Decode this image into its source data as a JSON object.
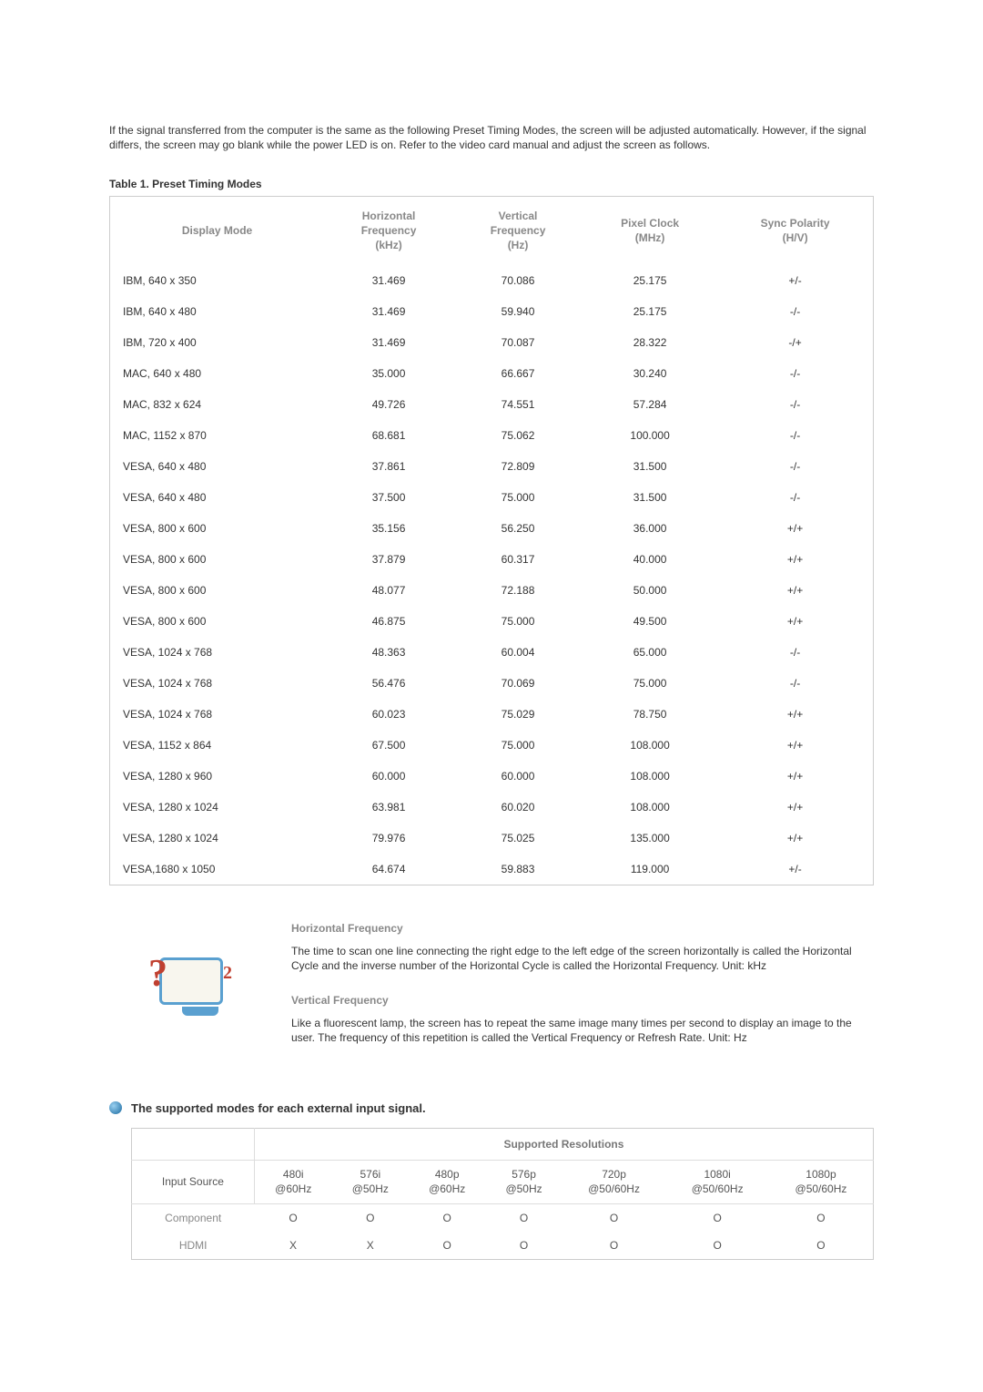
{
  "intro": "If the signal transferred from the computer is the same as the following Preset Timing Modes, the screen will be adjusted automatically. However, if the signal differs, the screen may go blank while the power LED is on. Refer to the video card manual and adjust the screen as follows.",
  "table1": {
    "title": "Table 1. Preset Timing Modes",
    "headers": {
      "mode": "Display Mode",
      "hfreq": "Horizontal\nFrequency\n(kHz)",
      "vfreq": "Vertical\nFrequency\n(Hz)",
      "clock": "Pixel Clock\n(MHz)",
      "sync": "Sync Polarity\n(H/V)"
    },
    "rows": [
      {
        "mode": "IBM, 640 x 350",
        "h": "31.469",
        "v": "70.086",
        "c": "25.175",
        "s": "+/-"
      },
      {
        "mode": "IBM, 640 x 480",
        "h": "31.469",
        "v": "59.940",
        "c": "25.175",
        "s": "-/-"
      },
      {
        "mode": "IBM, 720 x 400",
        "h": "31.469",
        "v": "70.087",
        "c": "28.322",
        "s": "-/+"
      },
      {
        "mode": "MAC, 640 x 480",
        "h": "35.000",
        "v": "66.667",
        "c": "30.240",
        "s": "-/-"
      },
      {
        "mode": "MAC, 832 x 624",
        "h": "49.726",
        "v": "74.551",
        "c": "57.284",
        "s": "-/-"
      },
      {
        "mode": "MAC, 1152 x 870",
        "h": "68.681",
        "v": "75.062",
        "c": "100.000",
        "s": "-/-"
      },
      {
        "mode": "VESA, 640 x 480",
        "h": "37.861",
        "v": "72.809",
        "c": "31.500",
        "s": "-/-"
      },
      {
        "mode": "VESA, 640 x 480",
        "h": "37.500",
        "v": "75.000",
        "c": "31.500",
        "s": "-/-"
      },
      {
        "mode": "VESA, 800 x 600",
        "h": "35.156",
        "v": "56.250",
        "c": "36.000",
        "s": "+/+"
      },
      {
        "mode": "VESA, 800 x 600",
        "h": "37.879",
        "v": "60.317",
        "c": "40.000",
        "s": "+/+"
      },
      {
        "mode": "VESA, 800 x 600",
        "h": "48.077",
        "v": "72.188",
        "c": "50.000",
        "s": "+/+"
      },
      {
        "mode": "VESA, 800 x 600",
        "h": "46.875",
        "v": "75.000",
        "c": "49.500",
        "s": "+/+"
      },
      {
        "mode": "VESA, 1024 x 768",
        "h": "48.363",
        "v": "60.004",
        "c": "65.000",
        "s": "-/-"
      },
      {
        "mode": "VESA, 1024 x 768",
        "h": "56.476",
        "v": "70.069",
        "c": "75.000",
        "s": "-/-"
      },
      {
        "mode": "VESA, 1024 x 768",
        "h": "60.023",
        "v": "75.029",
        "c": "78.750",
        "s": "+/+"
      },
      {
        "mode": "VESA, 1152 x 864",
        "h": "67.500",
        "v": "75.000",
        "c": "108.000",
        "s": "+/+"
      },
      {
        "mode": "VESA, 1280 x 960",
        "h": "60.000",
        "v": "60.000",
        "c": "108.000",
        "s": "+/+"
      },
      {
        "mode": "VESA, 1280 x 1024",
        "h": "63.981",
        "v": "60.020",
        "c": "108.000",
        "s": "+/+"
      },
      {
        "mode": "VESA, 1280 x 1024",
        "h": "79.976",
        "v": "75.025",
        "c": "135.000",
        "s": "+/+"
      },
      {
        "mode": "VESA,1680 x 1050",
        "h": "64.674",
        "v": "59.883",
        "c": "119.000",
        "s": "+/-"
      }
    ]
  },
  "info": {
    "h1_title": "Horizontal Frequency",
    "h1_body": "The time to scan one line connecting the right edge to the left edge of the screen horizontally is called the Horizontal Cycle and the inverse number of the Horizontal Cycle is called the Horizontal Frequency. Unit: kHz",
    "v1_title": "Vertical Frequency",
    "v1_body": "Like a fluorescent lamp, the screen has to repeat the same image many times per second to display an image to the user. The frequency of this repetition is called the Vertical Frequency or Refresh Rate. Unit: Hz"
  },
  "section2": {
    "title": "The supported modes for each external input signal.",
    "group_header": "Supported Resolutions",
    "col0": "Input Source",
    "cols": [
      "480i\n@60Hz",
      "576i\n@50Hz",
      "480p\n@60Hz",
      "576p\n@50Hz",
      "720p\n@50/60Hz",
      "1080i\n@50/60Hz",
      "1080p\n@50/60Hz"
    ],
    "rows": [
      {
        "label": "Component",
        "vals": [
          "O",
          "O",
          "O",
          "O",
          "O",
          "O",
          "O"
        ]
      },
      {
        "label": "HDMI",
        "vals": [
          "X",
          "X",
          "O",
          "O",
          "O",
          "O",
          "O"
        ]
      }
    ]
  }
}
